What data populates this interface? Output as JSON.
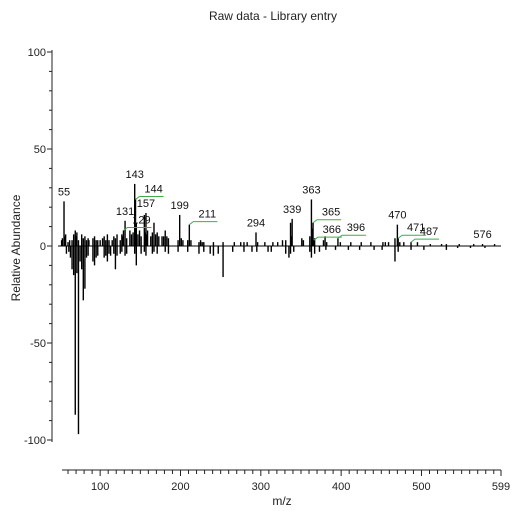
{
  "chart_data": {
    "type": "bar",
    "title": "Raw data - Library entry",
    "xlabel": "m/z",
    "ylabel": "Relative Abundance",
    "xlim": [
      50,
      599
    ],
    "ylim": [
      -100,
      100
    ],
    "x_ticks": [
      "100",
      "200",
      "300",
      "400",
      "500",
      "599"
    ],
    "y_ticks": [
      "100",
      "50",
      "0",
      "-50",
      "-100"
    ],
    "series": [
      {
        "values": [
          [
            52,
            3
          ],
          [
            53,
            4
          ],
          [
            55,
            23
          ],
          [
            56,
            5
          ],
          [
            57,
            6
          ],
          [
            60,
            2
          ],
          [
            62,
            3
          ],
          [
            65,
            3
          ],
          [
            67,
            6
          ],
          [
            69,
            8
          ],
          [
            70,
            5
          ],
          [
            71,
            7
          ],
          [
            73,
            3
          ],
          [
            77,
            6
          ],
          [
            79,
            4
          ],
          [
            81,
            5
          ],
          [
            83,
            3
          ],
          [
            85,
            4
          ],
          [
            86,
            3
          ],
          [
            91,
            4
          ],
          [
            93,
            5
          ],
          [
            95,
            3
          ],
          [
            97,
            3
          ],
          [
            100,
            3
          ],
          [
            103,
            4
          ],
          [
            105,
            5
          ],
          [
            107,
            3
          ],
          [
            109,
            6
          ],
          [
            111,
            3
          ],
          [
            115,
            3
          ],
          [
            117,
            5
          ],
          [
            119,
            4
          ],
          [
            121,
            6
          ],
          [
            125,
            3
          ],
          [
            127,
            6
          ],
          [
            128,
            5
          ],
          [
            129,
            8
          ],
          [
            131,
            13
          ],
          [
            133,
            4
          ],
          [
            137,
            8
          ],
          [
            139,
            6
          ],
          [
            141,
            7
          ],
          [
            143,
            32
          ],
          [
            144,
            24
          ],
          [
            145,
            12
          ],
          [
            147,
            6
          ],
          [
            149,
            8
          ],
          [
            151,
            5
          ],
          [
            155,
            16
          ],
          [
            156,
            7
          ],
          [
            157,
            17
          ],
          [
            158,
            6
          ],
          [
            159,
            8
          ],
          [
            163,
            5
          ],
          [
            165,
            7
          ],
          [
            167,
            12
          ],
          [
            169,
            6
          ],
          [
            171,
            7
          ],
          [
            173,
            5
          ],
          [
            177,
            5
          ],
          [
            179,
            5
          ],
          [
            181,
            8
          ],
          [
            183,
            5
          ],
          [
            185,
            4
          ],
          [
            197,
            3
          ],
          [
            199,
            16
          ],
          [
            201,
            4
          ],
          [
            203,
            3
          ],
          [
            209,
            3
          ],
          [
            211,
            11
          ],
          [
            213,
            3
          ],
          [
            223,
            2
          ],
          [
            225,
            3
          ],
          [
            227,
            2
          ],
          [
            229,
            2
          ],
          [
            241,
            2
          ],
          [
            253,
            2
          ],
          [
            267,
            2
          ],
          [
            275,
            2
          ],
          [
            279,
            2
          ],
          [
            283,
            2
          ],
          [
            294,
            7
          ],
          [
            296,
            2
          ],
          [
            305,
            2
          ],
          [
            315,
            2
          ],
          [
            321,
            2
          ],
          [
            327,
            3
          ],
          [
            331,
            3
          ],
          [
            337,
            12
          ],
          [
            338,
            5
          ],
          [
            339,
            14
          ],
          [
            351,
            4
          ],
          [
            353,
            3
          ],
          [
            361,
            5
          ],
          [
            363,
            24
          ],
          [
            364,
            9
          ],
          [
            365,
            12
          ],
          [
            366,
            3
          ],
          [
            367,
            4
          ],
          [
            378,
            3
          ],
          [
            380,
            5
          ],
          [
            382,
            2
          ],
          [
            396,
            4
          ],
          [
            399,
            2
          ],
          [
            412,
            2
          ],
          [
            425,
            2
          ],
          [
            437,
            2
          ],
          [
            452,
            2
          ],
          [
            455,
            2
          ],
          [
            459,
            2
          ],
          [
            467,
            4
          ],
          [
            470,
            11
          ],
          [
            471,
            4
          ],
          [
            473,
            2
          ],
          [
            478,
            2
          ],
          [
            487,
            2
          ],
          [
            495,
            2
          ],
          [
            511,
            1
          ],
          [
            525,
            1
          ],
          [
            531,
            1
          ],
          [
            547,
            1
          ],
          [
            565,
            1
          ],
          [
            576,
            1
          ],
          [
            591,
            1
          ]
        ]
      },
      {
        "values": [
          [
            58,
            -4
          ],
          [
            61,
            -3
          ],
          [
            63,
            -6
          ],
          [
            65,
            -12
          ],
          [
            67,
            -15
          ],
          [
            69,
            -87
          ],
          [
            71,
            -14
          ],
          [
            73,
            -97
          ],
          [
            75,
            -8
          ],
          [
            77,
            -12
          ],
          [
            79,
            -28
          ],
          [
            81,
            -22
          ],
          [
            83,
            -6
          ],
          [
            85,
            -5
          ],
          [
            91,
            -8
          ],
          [
            93,
            -10
          ],
          [
            95,
            -6
          ],
          [
            97,
            -5
          ],
          [
            105,
            -6
          ],
          [
            107,
            -5
          ],
          [
            109,
            -8
          ],
          [
            111,
            -4
          ],
          [
            113,
            -5
          ],
          [
            117,
            -4
          ],
          [
            119,
            -12
          ],
          [
            121,
            -5
          ],
          [
            125,
            -4
          ],
          [
            127,
            -3
          ],
          [
            131,
            -5
          ],
          [
            133,
            -4
          ],
          [
            143,
            -4
          ],
          [
            145,
            -10
          ],
          [
            151,
            -4
          ],
          [
            155,
            -3
          ],
          [
            157,
            -5
          ],
          [
            165,
            -4
          ],
          [
            167,
            -3
          ],
          [
            171,
            -4
          ],
          [
            181,
            -3
          ],
          [
            185,
            -4
          ],
          [
            197,
            -3
          ],
          [
            209,
            -3
          ],
          [
            223,
            -4
          ],
          [
            229,
            -3
          ],
          [
            237,
            -4
          ],
          [
            241,
            -5
          ],
          [
            247,
            -4
          ],
          [
            253,
            -16
          ],
          [
            265,
            -3
          ],
          [
            279,
            -3
          ],
          [
            289,
            -3
          ],
          [
            295,
            -3
          ],
          [
            309,
            -3
          ],
          [
            313,
            -3
          ],
          [
            331,
            -4
          ],
          [
            335,
            -6
          ],
          [
            337,
            -4
          ],
          [
            341,
            -3
          ],
          [
            361,
            -3
          ],
          [
            363,
            -6
          ],
          [
            367,
            -4
          ],
          [
            373,
            -3
          ],
          [
            381,
            -2
          ],
          [
            393,
            -2
          ],
          [
            409,
            -2
          ],
          [
            423,
            -2
          ],
          [
            441,
            -2
          ],
          [
            451,
            -2
          ],
          [
            467,
            -8
          ],
          [
            471,
            -3
          ],
          [
            487,
            -2
          ],
          [
            503,
            -2
          ],
          [
            531,
            -2
          ],
          [
            545,
            -1
          ],
          [
            561,
            -1
          ],
          [
            579,
            -1
          ]
        ]
      }
    ],
    "peak_labels": [
      {
        "mz": 55,
        "y": 23,
        "text": "55"
      },
      {
        "mz": 129,
        "y": 8,
        "text": "129",
        "leader": [
          117,
          8
        ]
      },
      {
        "mz": 131,
        "y": 13,
        "text": "131"
      },
      {
        "mz": 143,
        "y": 32,
        "text": "143"
      },
      {
        "mz": 144,
        "y": 24,
        "text": "144",
        "leader": [
          144,
          24
        ]
      },
      {
        "mz": 157,
        "y": 17,
        "text": "157"
      },
      {
        "mz": 199,
        "y": 16,
        "text": "199"
      },
      {
        "mz": 211,
        "y": 11,
        "text": "211",
        "leader": [
          211,
          11
        ]
      },
      {
        "mz": 294,
        "y": 7,
        "text": "294"
      },
      {
        "mz": 339,
        "y": 14,
        "text": "339"
      },
      {
        "mz": 363,
        "y": 24,
        "text": "363"
      },
      {
        "mz": 365,
        "y": 12,
        "text": "365",
        "leader": [
          365,
          12
        ]
      },
      {
        "mz": 366,
        "y": 3,
        "text": "366",
        "leader": [
          366,
          3
        ]
      },
      {
        "mz": 396,
        "y": 4,
        "text": "396",
        "leader": [
          396,
          4
        ]
      },
      {
        "mz": 470,
        "y": 11,
        "text": "470"
      },
      {
        "mz": 471,
        "y": 4,
        "text": "471",
        "leader": [
          471,
          4
        ]
      },
      {
        "mz": 487,
        "y": 2,
        "text": "487",
        "leader": [
          487,
          2
        ]
      },
      {
        "mz": 576,
        "y": 1,
        "text": "576"
      }
    ],
    "colors": {
      "bar": "#000000",
      "axis": "#222222",
      "leader": "#3fae49"
    },
    "grid": false
  }
}
